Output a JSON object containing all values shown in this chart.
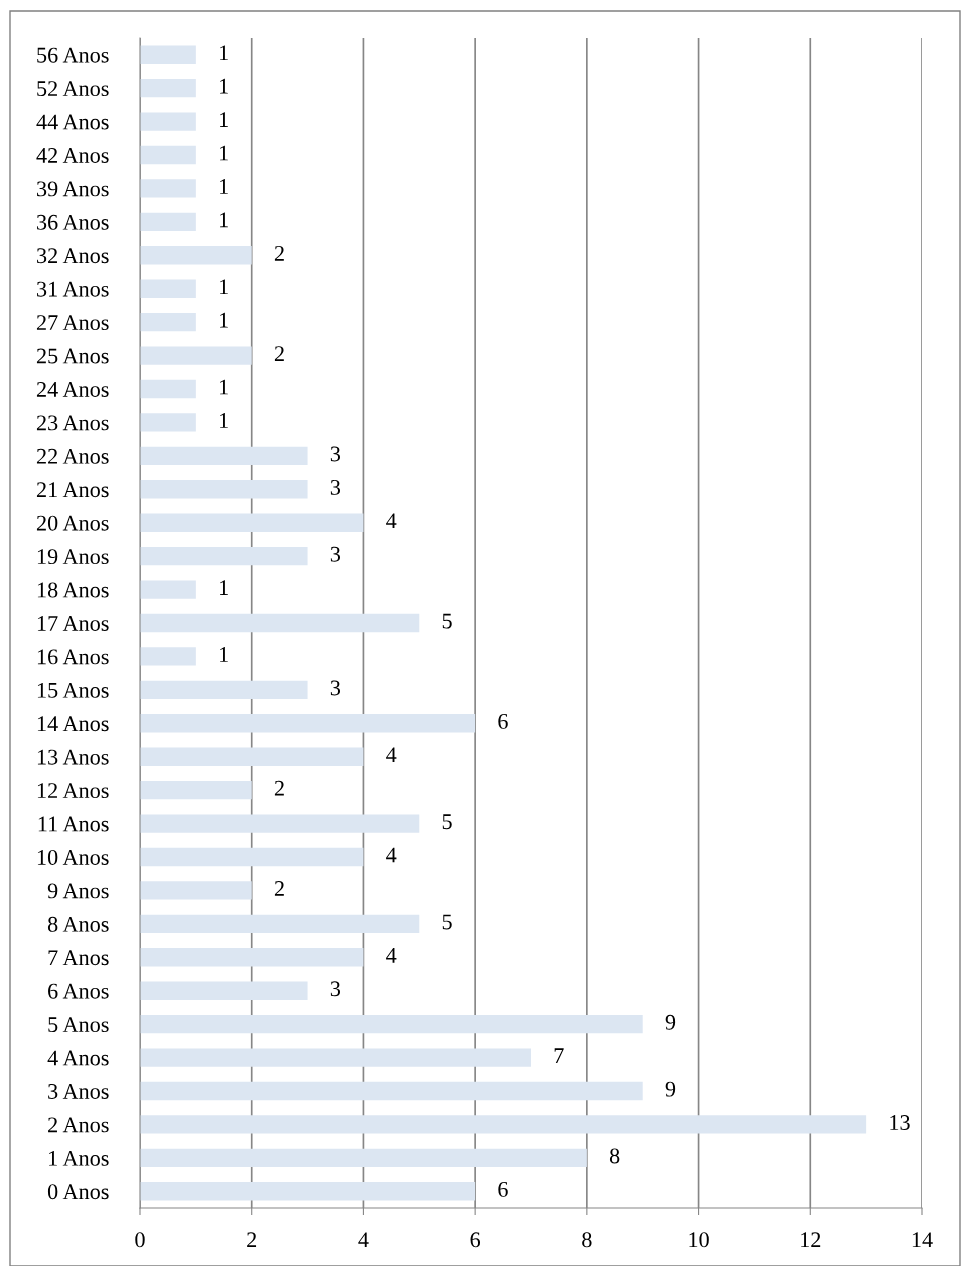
{
  "chart_data": {
    "type": "bar",
    "orientation": "horizontal",
    "categories": [
      "56 Anos",
      "52 Anos",
      "44 Anos",
      "42 Anos",
      "39 Anos",
      "36 Anos",
      "32 Anos",
      "31 Anos",
      "27 Anos",
      "25 Anos",
      "24 Anos",
      "23 Anos",
      "22 Anos",
      "21 Anos",
      "20 Anos",
      "19 Anos",
      "18 Anos",
      "17 Anos",
      "16 Anos",
      "15 Anos",
      "14 Anos",
      "13 Anos",
      "12 Anos",
      "11 Anos",
      "10 Anos",
      "9 Anos",
      "8 Anos",
      "7 Anos",
      "6 Anos",
      "5 Anos",
      "4 Anos",
      "3 Anos",
      "2 Anos",
      "1 Anos",
      "0 Anos"
    ],
    "values": [
      1,
      1,
      1,
      1,
      1,
      1,
      2,
      1,
      1,
      2,
      1,
      1,
      3,
      3,
      4,
      3,
      1,
      5,
      1,
      3,
      6,
      4,
      2,
      5,
      4,
      2,
      5,
      4,
      3,
      9,
      7,
      9,
      13,
      8,
      6
    ],
    "color": "#dce6f2",
    "xlim": [
      0,
      14
    ],
    "xticks": [
      0,
      2,
      4,
      6,
      8,
      10,
      12,
      14
    ],
    "grid": "x",
    "data_labels": true
  }
}
